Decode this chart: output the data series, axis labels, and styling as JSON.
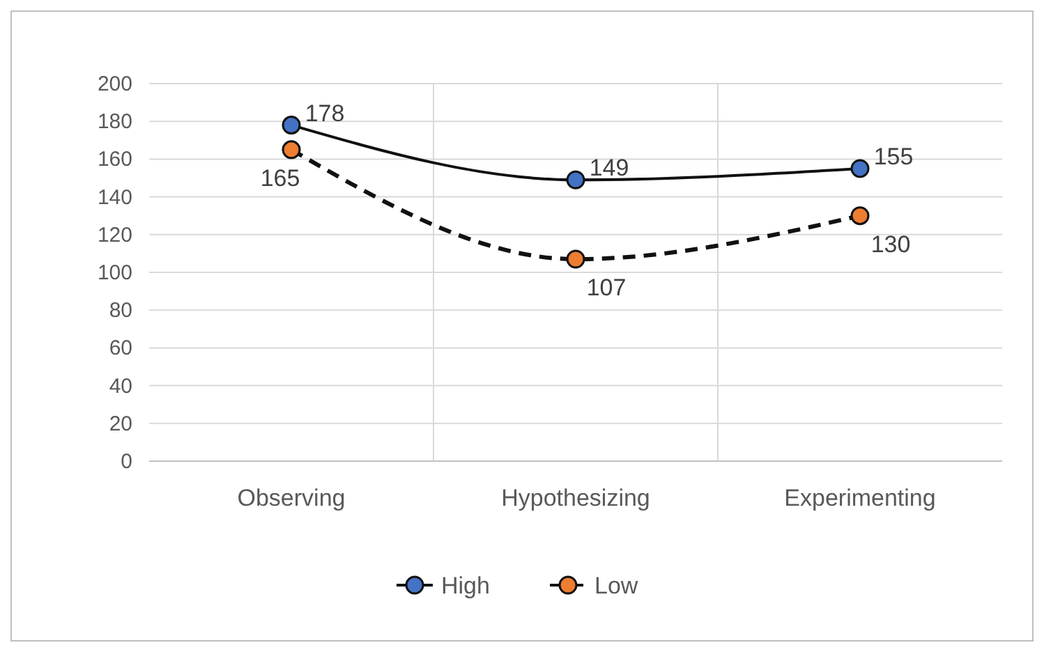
{
  "chart_data": {
    "type": "line",
    "categories": [
      "Observing",
      "Hypothesizing",
      "Experimenting"
    ],
    "series": [
      {
        "name": "High",
        "color": "#4472c4",
        "values": [
          178,
          149,
          155
        ],
        "line_style": "solid"
      },
      {
        "name": "Low",
        "color": "#ed7d31",
        "values": [
          165,
          107,
          130
        ],
        "line_style": "dashed"
      }
    ],
    "ylim": [
      0,
      200
    ],
    "yticks": [
      0,
      20,
      40,
      60,
      80,
      100,
      120,
      140,
      160,
      180,
      200
    ],
    "grid": true,
    "legend": "bottom",
    "marker": "circle",
    "data_labels": true
  }
}
